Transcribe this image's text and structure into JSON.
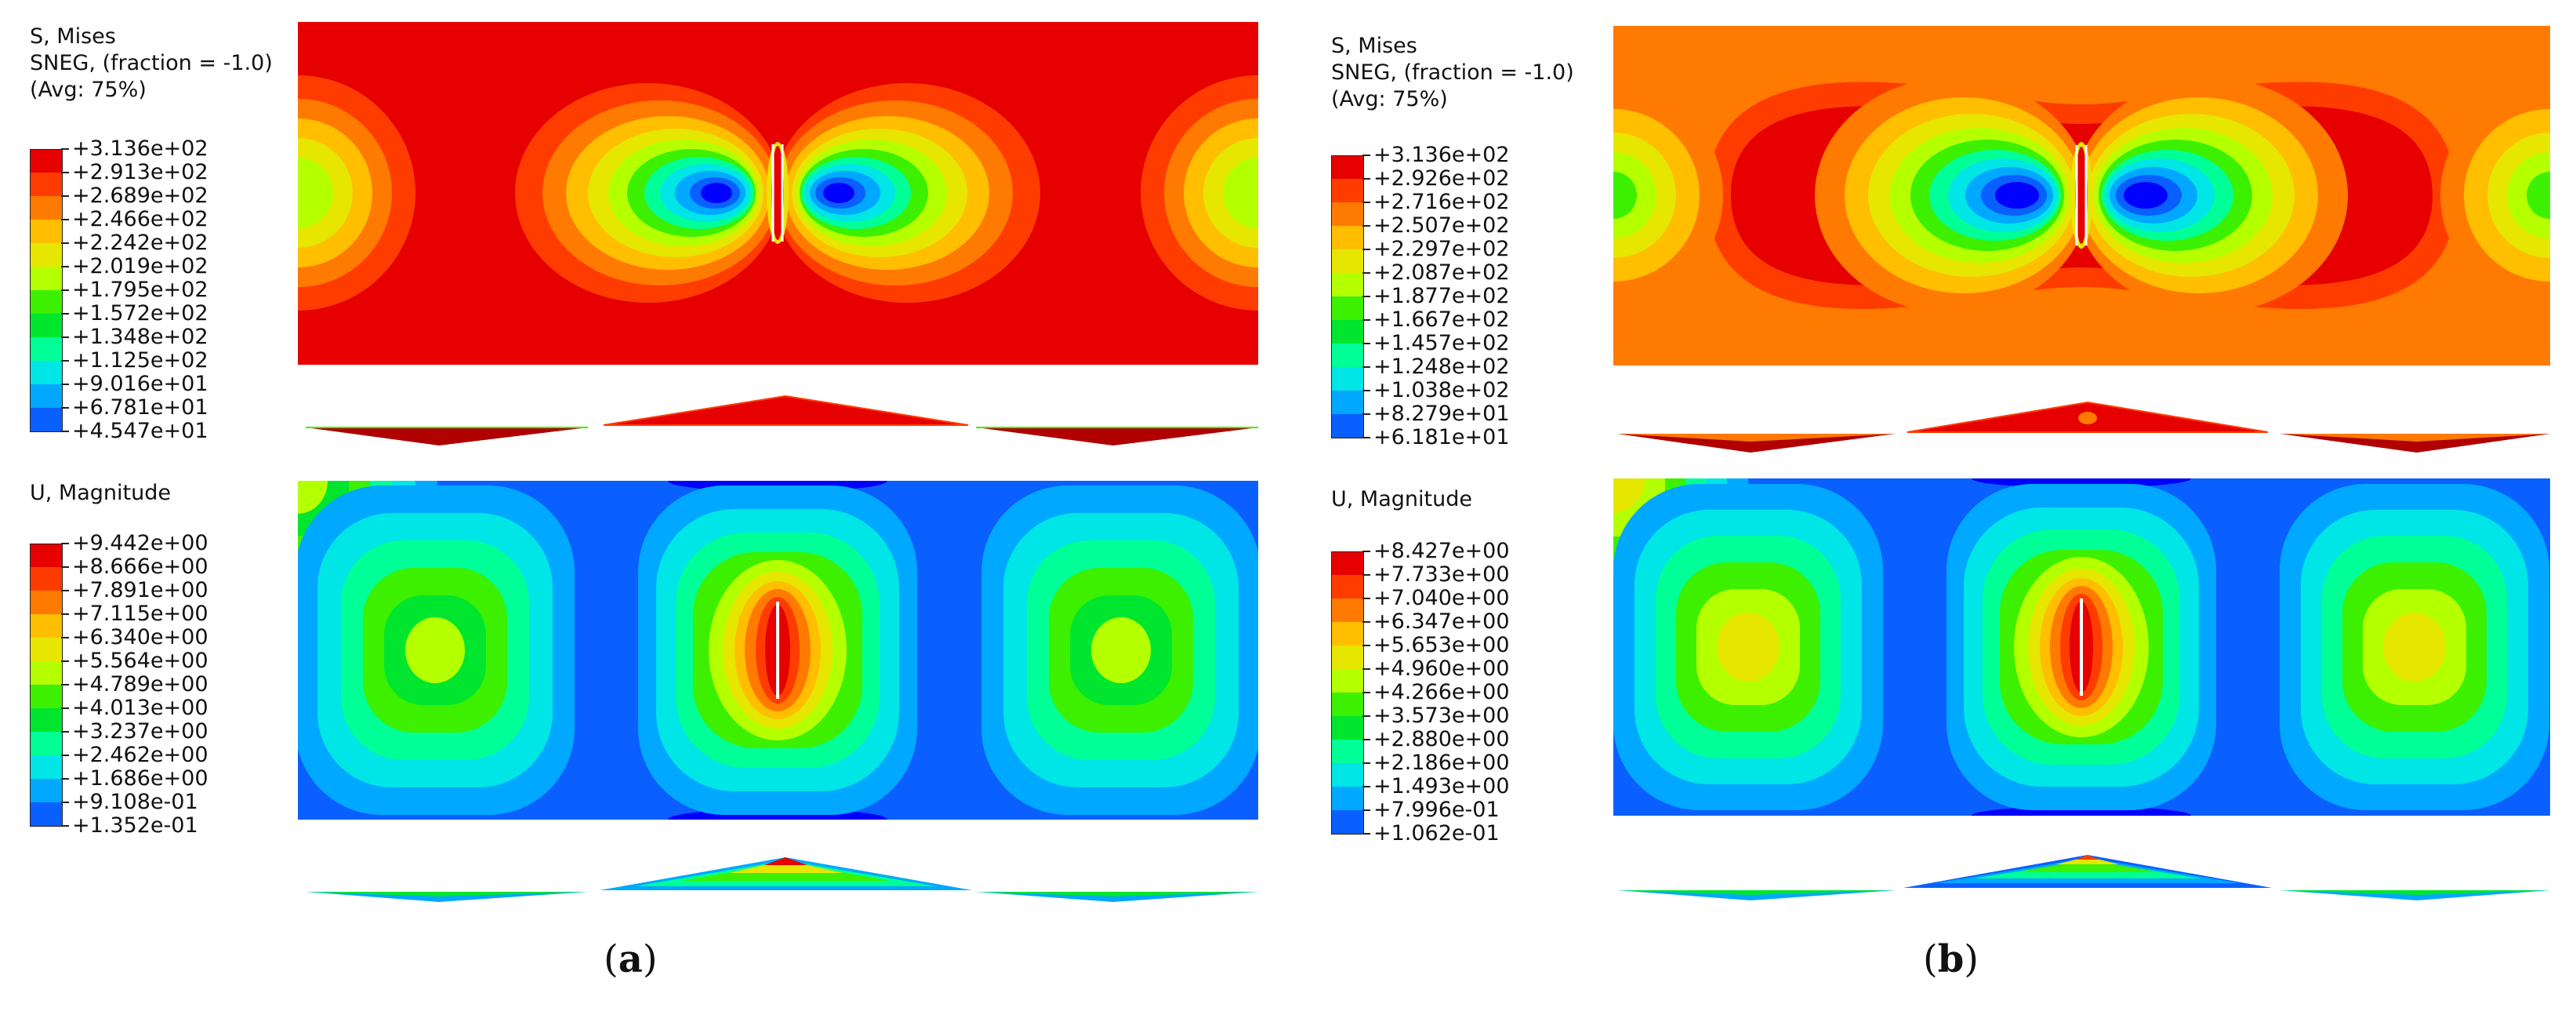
{
  "palette": [
    "#0000ff",
    "#0a5fff",
    "#00a8ff",
    "#00e5e5",
    "#00ff96",
    "#00e62e",
    "#3cf000",
    "#b4ff00",
    "#e6e600",
    "#ffbe00",
    "#ff7a00",
    "#ff3c00",
    "#e60000"
  ],
  "panels": [
    {
      "caption": {
        "open": "(",
        "letter": "a",
        "close": ")"
      },
      "stress_title": "S, Mises\nSNEG, (fraction = -1.0)\n(Avg: 75%)",
      "stress_labels": [
        "+3.136e+02",
        "+2.913e+02",
        "+2.689e+02",
        "+2.466e+02",
        "+2.242e+02",
        "+2.019e+02",
        "+1.795e+02",
        "+1.572e+02",
        "+1.348e+02",
        "+1.125e+02",
        "+9.016e+01",
        "+6.781e+01",
        "+4.547e+01"
      ],
      "disp_title": "U, Magnitude",
      "disp_labels": [
        "+9.442e+00",
        "+8.666e+00",
        "+7.891e+00",
        "+7.115e+00",
        "+6.340e+00",
        "+5.564e+00",
        "+4.789e+00",
        "+4.013e+00",
        "+3.237e+00",
        "+2.462e+00",
        "+1.686e+00",
        "+9.108e-01",
        "+1.352e-01"
      ]
    },
    {
      "caption": {
        "open": "(",
        "letter": "b",
        "close": ")"
      },
      "stress_title": "S, Mises\nSNEG, (fraction = -1.0)\n(Avg: 75%)",
      "stress_labels": [
        "+3.136e+02",
        "+2.926e+02",
        "+2.716e+02",
        "+2.507e+02",
        "+2.297e+02",
        "+2.087e+02",
        "+1.877e+02",
        "+1.667e+02",
        "+1.457e+02",
        "+1.248e+02",
        "+1.038e+02",
        "+8.279e+01",
        "+6.181e+01"
      ],
      "disp_title": "U, Magnitude",
      "disp_labels": [
        "+8.427e+00",
        "+7.733e+00",
        "+7.040e+00",
        "+6.347e+00",
        "+5.653e+00",
        "+4.960e+00",
        "+4.266e+00",
        "+3.573e+00",
        "+2.880e+00",
        "+2.186e+00",
        "+1.493e+00",
        "+7.996e-01",
        "+1.062e-01"
      ]
    }
  ]
}
